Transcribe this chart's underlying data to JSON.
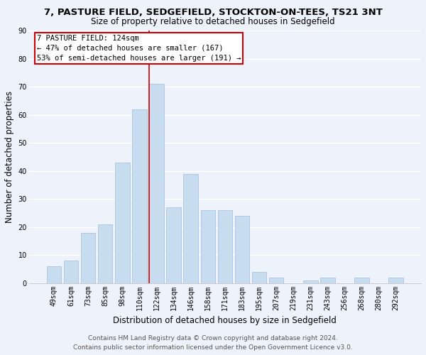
{
  "title": "7, PASTURE FIELD, SEDGEFIELD, STOCKTON-ON-TEES, TS21 3NT",
  "subtitle": "Size of property relative to detached houses in Sedgefield",
  "xlabel": "Distribution of detached houses by size in Sedgefield",
  "ylabel": "Number of detached properties",
  "categories": [
    "49sqm",
    "61sqm",
    "73sqm",
    "85sqm",
    "98sqm",
    "110sqm",
    "122sqm",
    "134sqm",
    "146sqm",
    "158sqm",
    "171sqm",
    "183sqm",
    "195sqm",
    "207sqm",
    "219sqm",
    "231sqm",
    "243sqm",
    "256sqm",
    "268sqm",
    "280sqm",
    "292sqm"
  ],
  "values": [
    6,
    8,
    18,
    21,
    43,
    62,
    71,
    27,
    39,
    26,
    26,
    24,
    4,
    2,
    0,
    1,
    2,
    0,
    2,
    0,
    2
  ],
  "bar_color": "#c8dcf0",
  "bar_edge_color": "#aac4e0",
  "highlight_index": 6,
  "vline_color": "#cc0000",
  "ylim": [
    0,
    90
  ],
  "yticks": [
    0,
    10,
    20,
    30,
    40,
    50,
    60,
    70,
    80,
    90
  ],
  "ann_line1": "7 PASTURE FIELD: 124sqm",
  "ann_line2": "← 47% of detached houses are smaller (167)",
  "ann_line3": "53% of semi-detached houses are larger (191) →",
  "footer_line1": "Contains HM Land Registry data © Crown copyright and database right 2024.",
  "footer_line2": "Contains public sector information licensed under the Open Government Licence v3.0.",
  "background_color": "#eef2fb",
  "plot_background_color": "#eef2fb",
  "grid_color": "#ffffff",
  "title_fontsize": 9.5,
  "subtitle_fontsize": 8.5,
  "axis_label_fontsize": 8.5,
  "tick_fontsize": 7,
  "footer_fontsize": 6.5
}
